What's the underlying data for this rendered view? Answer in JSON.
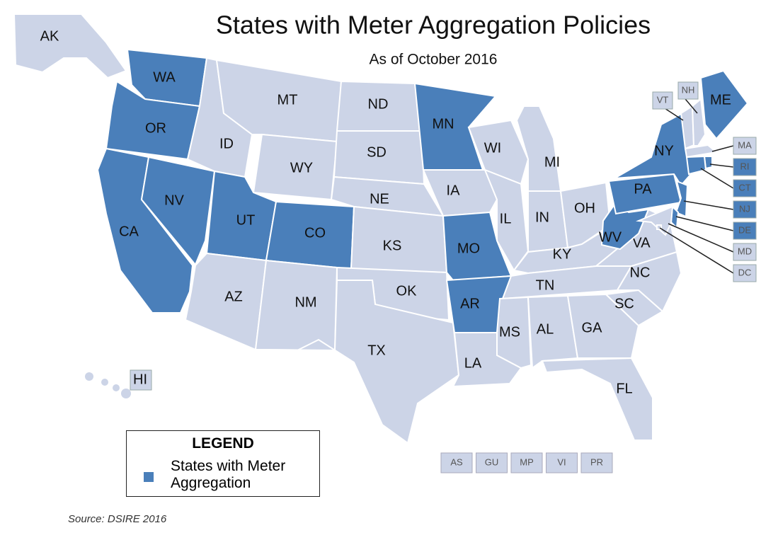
{
  "title": "States with Meter Aggregation Policies",
  "subtitle": "As of October 2016",
  "colors": {
    "policy": "#4a7fba",
    "other": "#ccd4e7"
  },
  "states": [
    {
      "label": "AK",
      "aggregation": false
    },
    {
      "label": "HI",
      "aggregation": false
    },
    {
      "label": "WA",
      "aggregation": true
    },
    {
      "label": "OR",
      "aggregation": true
    },
    {
      "label": "CA",
      "aggregation": true
    },
    {
      "label": "NV",
      "aggregation": true
    },
    {
      "label": "ID",
      "aggregation": false
    },
    {
      "label": "MT",
      "aggregation": false
    },
    {
      "label": "WY",
      "aggregation": false
    },
    {
      "label": "UT",
      "aggregation": true
    },
    {
      "label": "CO",
      "aggregation": true
    },
    {
      "label": "AZ",
      "aggregation": false
    },
    {
      "label": "NM",
      "aggregation": false
    },
    {
      "label": "ND",
      "aggregation": false
    },
    {
      "label": "SD",
      "aggregation": false
    },
    {
      "label": "NE",
      "aggregation": false
    },
    {
      "label": "KS",
      "aggregation": false
    },
    {
      "label": "OK",
      "aggregation": false
    },
    {
      "label": "TX",
      "aggregation": false
    },
    {
      "label": "MN",
      "aggregation": true
    },
    {
      "label": "IA",
      "aggregation": false
    },
    {
      "label": "MO",
      "aggregation": true
    },
    {
      "label": "AR",
      "aggregation": true
    },
    {
      "label": "LA",
      "aggregation": false
    },
    {
      "label": "WI",
      "aggregation": false
    },
    {
      "label": "IL",
      "aggregation": false
    },
    {
      "label": "MI",
      "aggregation": false
    },
    {
      "label": "IN",
      "aggregation": false
    },
    {
      "label": "OH",
      "aggregation": false
    },
    {
      "label": "KY",
      "aggregation": false
    },
    {
      "label": "TN",
      "aggregation": false
    },
    {
      "label": "MS",
      "aggregation": false
    },
    {
      "label": "AL",
      "aggregation": false
    },
    {
      "label": "GA",
      "aggregation": false
    },
    {
      "label": "FL",
      "aggregation": false
    },
    {
      "label": "SC",
      "aggregation": false
    },
    {
      "label": "NC",
      "aggregation": false
    },
    {
      "label": "VA",
      "aggregation": false
    },
    {
      "label": "WV",
      "aggregation": true
    },
    {
      "label": "PA",
      "aggregation": true
    },
    {
      "label": "NY",
      "aggregation": true
    },
    {
      "label": "VT",
      "aggregation": false
    },
    {
      "label": "NH",
      "aggregation": false
    },
    {
      "label": "ME",
      "aggregation": true
    },
    {
      "label": "MA",
      "aggregation": false
    },
    {
      "label": "RI",
      "aggregation": true
    },
    {
      "label": "CT",
      "aggregation": true
    },
    {
      "label": "NJ",
      "aggregation": true
    },
    {
      "label": "DE",
      "aggregation": true
    },
    {
      "label": "MD",
      "aggregation": false
    },
    {
      "label": "DC",
      "aggregation": false
    }
  ],
  "territories": [
    "AS",
    "GU",
    "MP",
    "VI",
    "PR"
  ],
  "legend": {
    "title": "LEGEND",
    "label": "States with Meter Aggregation"
  },
  "source": "Source: DSIRE 2016"
}
